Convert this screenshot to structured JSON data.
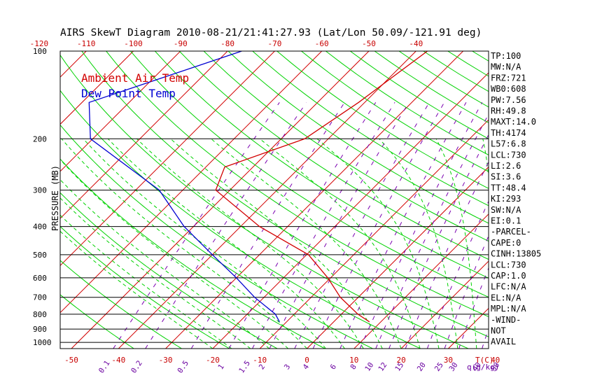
{
  "chart_data": {
    "type": "line",
    "title": "AIRS SkewT Diagram 2010-08-21/21:41:27.93 (Lat/Lon 50.09/-121.91 deg)",
    "ylabel": "PRESSURE (MB)",
    "xlabel": "T(C)",
    "mixing_ratio_unit": "q(g/kg)",
    "pressure_ticks": [
      100,
      200,
      300,
      400,
      500,
      600,
      700,
      800,
      900,
      1000
    ],
    "top_temp_ticks": [
      -120,
      -110,
      -100,
      -90,
      -80,
      -70,
      -60,
      -50,
      -40
    ],
    "bottom_temp_ticks": [
      -50,
      -40,
      -30,
      -20,
      -10,
      0,
      10,
      20,
      30,
      40
    ],
    "mixing_ratio_labels": [
      "0.1",
      "0.2",
      "0.5",
      "1",
      "1.5",
      "2",
      "3",
      "4",
      "6",
      "8",
      "10",
      "12",
      "15",
      "20",
      "25",
      "30",
      "40",
      "50"
    ],
    "series": [
      {
        "name": "Ambient Air Temp",
        "color": "#d20000",
        "points": [
          {
            "p": 100,
            "t": -37.6
          },
          {
            "p": 150,
            "t": -41.3
          },
          {
            "p": 200,
            "t": -45.0
          },
          {
            "p": 250,
            "t": -56.0
          },
          {
            "p": 300,
            "t": -53.0
          },
          {
            "p": 400,
            "t": -36.0
          },
          {
            "p": 500,
            "t": -19.6
          },
          {
            "p": 600,
            "t": -10.6
          },
          {
            "p": 700,
            "t": -3.8
          },
          {
            "p": 800,
            "t": 3.5
          },
          {
            "p": 850,
            "t": 7.6
          }
        ]
      },
      {
        "name": "Dew Point Temp",
        "color": "#0000d2",
        "points": [
          {
            "p": 100,
            "t": -77.0
          },
          {
            "p": 150,
            "t": -98.5
          },
          {
            "p": 200,
            "t": -90.5
          },
          {
            "p": 300,
            "t": -65.0
          },
          {
            "p": 400,
            "t": -52.0
          },
          {
            "p": 500,
            "t": -40.0
          },
          {
            "p": 600,
            "t": -30.0
          },
          {
            "p": 700,
            "t": -22.0
          },
          {
            "p": 800,
            "t": -14.0
          },
          {
            "p": 850,
            "t": -11.5
          }
        ]
      }
    ],
    "grid": true,
    "legend": "top-left"
  },
  "indices": [
    "TP:100",
    "MW:N/A",
    "FRZ:721",
    "WB0:608",
    "PW:7.56",
    "RH:49.8",
    "MAXT:14.0",
    "TH:4174",
    "L57:6.8",
    "LCL:730",
    "LI:2.6",
    "SI:3.6",
    "TT:48.4",
    "KI:293",
    "SW:N/A",
    "EI:0.1",
    "-PARCEL-",
    "CAPE:0",
    "CINH:13805",
    "LCL:730",
    "CAP:1.0",
    "LFC:N/A",
    "EL:N/A",
    "MPL:N/A",
    "-WIND-",
    "NOT",
    "AVAIL"
  ],
  "colors": {
    "isotherm": "#d20000",
    "dry_adiabat": "#00d200",
    "moist_adiabat": "#00d200",
    "mixing_ratio": "#7a00b0",
    "isobar": "#000000",
    "legend_temp": "#d20000",
    "legend_dew": "#0000d2",
    "tick_label": "#c80000",
    "mixing_label": "#6a00a0"
  }
}
